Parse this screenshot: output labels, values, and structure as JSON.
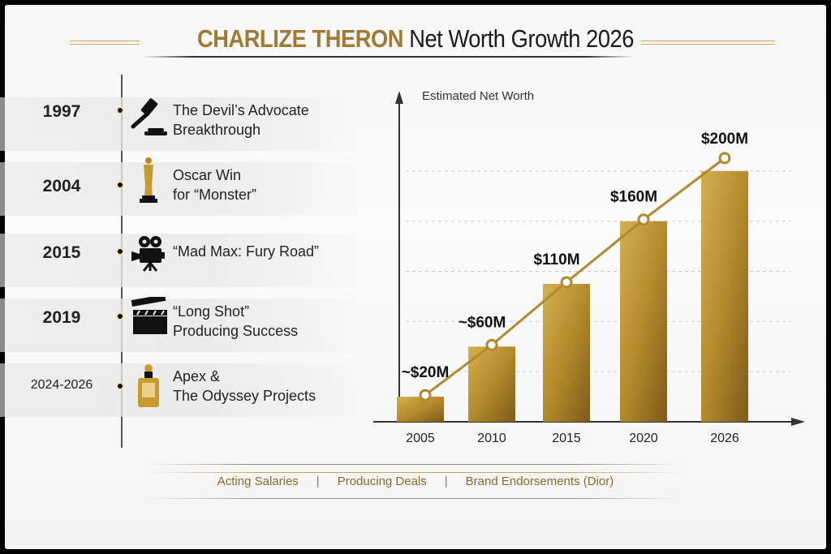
{
  "header": {
    "title_name": "CHARLIZE THERON",
    "title_rest": "Net Worth Growth 2026"
  },
  "timeline": [
    {
      "year": "1997",
      "icon": "gavel-icon",
      "line1": "The Devil’s Advocate",
      "line2": "Breakthrough"
    },
    {
      "year": "2004",
      "icon": "oscar-statue-icon",
      "line1": "Oscar Win",
      "line2": "for “Monster”"
    },
    {
      "year": "2015",
      "icon": "film-camera-icon",
      "line1": "“Mad Max: Fury Road”",
      "line2": ""
    },
    {
      "year": "2019",
      "icon": "clapperboard-icon",
      "line1": "“Long Shot”",
      "line2": "Producing Success"
    },
    {
      "year": "2024-2026",
      "icon": "perfume-bottle-icon",
      "line1": "Apex &",
      "line2": "The Odyssey Projects"
    }
  ],
  "footer": {
    "items": [
      "Acting Salaries",
      "Producing Deals",
      "Brand Endorsements (Dior)"
    ],
    "separator": "|"
  },
  "colors": {
    "gold": "#a07a32",
    "bar_gold": "#b8902f",
    "line_gold": "#b08a30"
  },
  "chart_data": {
    "type": "bar",
    "ylabel": "Estimated Net Worth",
    "categories": [
      "2005",
      "2010",
      "2015",
      "2020",
      "2026"
    ],
    "values": [
      20,
      60,
      110,
      160,
      200
    ],
    "data_labels": [
      "~$20M",
      "~$60M",
      "$110M",
      "$160M",
      "$200M"
    ],
    "unit": "$M",
    "overlay_line": true,
    "ylim": [
      0,
      220
    ],
    "grid": "dashed horizontal"
  }
}
